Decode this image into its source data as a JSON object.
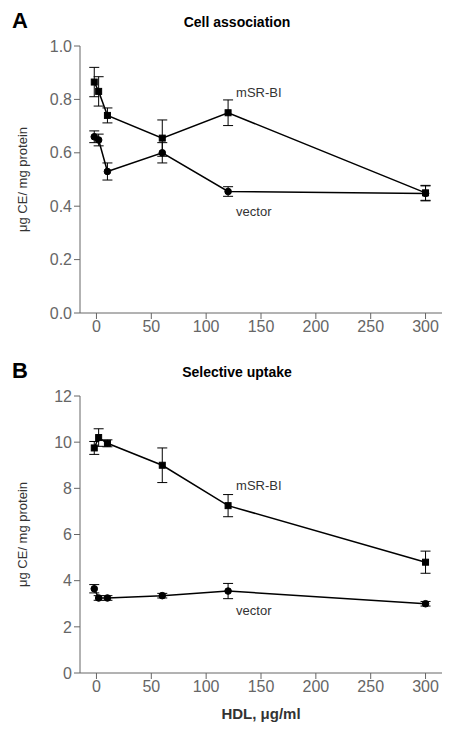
{
  "chart_data": [
    {
      "type": "line",
      "title": "Cell association",
      "annotations": [
        "A"
      ],
      "y_label": "μg CE/ mg protein",
      "x": [
        -2,
        2,
        10,
        60,
        120,
        300
      ],
      "xlim": [
        -15,
        315
      ],
      "xticks": [
        0,
        50,
        100,
        150,
        200,
        250,
        300
      ],
      "ylim": [
        0.0,
        1.0
      ],
      "yticks": [
        {
          "value": 0.0,
          "label": "0.0"
        },
        {
          "value": 0.2,
          "label": "0.2"
        },
        {
          "value": 0.4,
          "label": "0.4"
        },
        {
          "value": 0.6,
          "label": "0.6"
        },
        {
          "value": 0.8,
          "label": "0.8"
        },
        {
          "value": 1.0,
          "label": "1.0"
        }
      ],
      "series": [
        {
          "name": "mSR-BI",
          "color": "#000000",
          "marker": "square",
          "line_style": "solid",
          "values": [
            0.865,
            0.83,
            0.74,
            0.655,
            0.75,
            0.45
          ],
          "yerr": [
            0.055,
            0.055,
            0.028,
            0.068,
            0.048,
            0.028
          ]
        },
        {
          "name": "vector",
          "color": "#000000",
          "marker": "circle",
          "line_style": "solid",
          "values": [
            0.66,
            0.648,
            0.53,
            0.6,
            0.455,
            0.448
          ],
          "yerr": [
            0.022,
            0.022,
            0.032,
            0.038,
            0.018,
            0.028
          ]
        }
      ]
    },
    {
      "type": "line",
      "title": "Selective uptake",
      "annotations": [
        "B"
      ],
      "y_label": "μg CE/ mg protein",
      "x_label": "HDL, μg/ml",
      "x": [
        -2,
        2,
        10,
        60,
        120,
        300
      ],
      "xlim": [
        -15,
        315
      ],
      "xticks": [
        0,
        50,
        100,
        150,
        200,
        250,
        300
      ],
      "ylim": [
        0,
        12
      ],
      "yticks": [
        0,
        2,
        4,
        6,
        8,
        10,
        12
      ],
      "series": [
        {
          "name": "mSR-BI",
          "color": "#000000",
          "marker": "square",
          "line_style": "solid",
          "values": [
            9.75,
            10.2,
            9.95,
            9.0,
            7.25,
            4.8
          ],
          "yerr": [
            0.28,
            0.38,
            0.15,
            0.75,
            0.48,
            0.48
          ]
        },
        {
          "name": "vector",
          "color": "#000000",
          "marker": "circle",
          "line_style": "solid",
          "values": [
            3.65,
            3.25,
            3.25,
            3.35,
            3.55,
            3.0
          ],
          "yerr": [
            0.18,
            0.1,
            0.1,
            0.1,
            0.33,
            0.1
          ]
        }
      ]
    }
  ]
}
